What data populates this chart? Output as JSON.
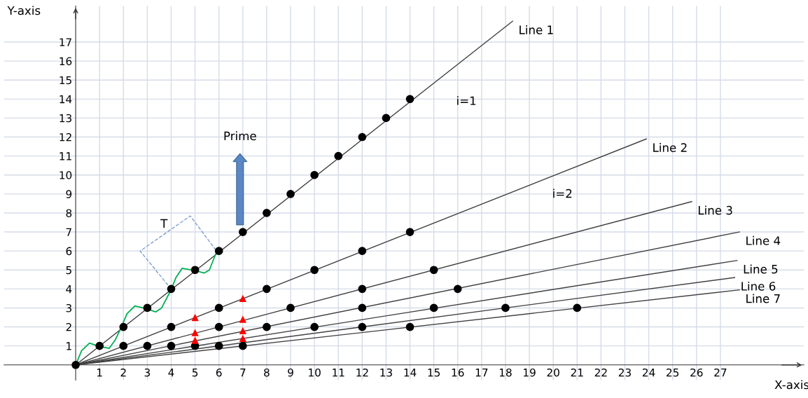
{
  "chart_data": {
    "type": "line",
    "xlabel": "X-axis",
    "ylabel": "Y-axis",
    "xlim": [
      -3,
      30.5
    ],
    "ylim": [
      -0.8,
      18.9
    ],
    "xticks": [
      1,
      2,
      3,
      4,
      5,
      6,
      7,
      8,
      9,
      10,
      11,
      12,
      13,
      14,
      15,
      16,
      17,
      18,
      19,
      20,
      21,
      22,
      23,
      24,
      25,
      26,
      27
    ],
    "yticks": [
      1,
      2,
      3,
      4,
      5,
      6,
      7,
      8,
      9,
      10,
      11,
      12,
      13,
      14,
      15,
      16,
      17
    ],
    "grid": true,
    "legend": false,
    "series": [
      {
        "name": "Line 1",
        "color": "#404040",
        "x": [
          0,
          18.3
        ],
        "values": [
          0,
          18.1
        ]
      },
      {
        "name": "Line 2",
        "color": "#404040",
        "x": [
          0,
          23.9
        ],
        "values": [
          0,
          11.9
        ]
      },
      {
        "name": "Line 3",
        "color": "#404040",
        "x": [
          0,
          25.8
        ],
        "values": [
          0,
          8.6
        ]
      },
      {
        "name": "Line 4",
        "color": "#404040",
        "x": [
          0,
          27.8
        ],
        "values": [
          0,
          7.0
        ]
      },
      {
        "name": "Line 5",
        "color": "#404040",
        "x": [
          0,
          27.7
        ],
        "values": [
          0,
          5.5
        ]
      },
      {
        "name": "Line 6",
        "color": "#404040",
        "x": [
          0,
          27.6
        ],
        "values": [
          0,
          4.6
        ]
      },
      {
        "name": "Line 7",
        "color": "#404040",
        "x": [
          0,
          27.8
        ],
        "values": [
          0,
          3.95
        ]
      },
      {
        "color": "#00b050",
        "x": [
          0,
          0.25,
          0.58,
          0.96,
          1.4,
          1.65,
          1.9,
          2.15,
          2.48,
          2.97,
          3.35,
          3.6,
          3.99,
          4.2,
          4.46,
          4.96,
          5.39,
          5.6,
          5.89
        ],
        "values": [
          0,
          0.75,
          1.15,
          0.98,
          0.87,
          1.3,
          1.95,
          2.7,
          3.1,
          2.96,
          2.79,
          3.0,
          3.94,
          4.6,
          5.09,
          4.98,
          4.84,
          5.0,
          5.92
        ]
      },
      {
        "type": "scatter",
        "color": "#000000",
        "marker": "circle",
        "x": [
          0,
          1,
          2,
          3,
          4,
          5,
          6,
          7,
          8,
          9,
          10,
          11,
          12,
          13,
          14
        ],
        "values": [
          0,
          1,
          2,
          3,
          4,
          5,
          6,
          7,
          8,
          9,
          10,
          11,
          12,
          13,
          14
        ]
      },
      {
        "type": "scatter",
        "color": "#000000",
        "marker": "circle",
        "x": [
          2,
          4,
          6,
          8,
          10,
          12,
          14
        ],
        "values": [
          1,
          2,
          3,
          4,
          5,
          6,
          7
        ]
      },
      {
        "type": "scatter",
        "color": "#000000",
        "marker": "circle",
        "x": [
          3,
          6,
          9,
          12,
          15
        ],
        "values": [
          1,
          2,
          3,
          4,
          5
        ]
      },
      {
        "type": "scatter",
        "color": "#000000",
        "marker": "circle",
        "x": [
          4,
          8,
          12,
          16
        ],
        "values": [
          1,
          2,
          3,
          4
        ]
      },
      {
        "type": "scatter",
        "color": "#000000",
        "marker": "circle",
        "x": [
          5,
          10,
          15
        ],
        "values": [
          1,
          2,
          3
        ]
      },
      {
        "type": "scatter",
        "color": "#000000",
        "marker": "circle",
        "x": [
          6,
          12,
          18
        ],
        "values": [
          1,
          2,
          3
        ]
      },
      {
        "type": "scatter",
        "color": "#000000",
        "marker": "circle",
        "x": [
          7,
          14,
          21
        ],
        "values": [
          1,
          2,
          3
        ]
      },
      {
        "type": "scatter",
        "color": "#ff0000",
        "marker": "triangle",
        "x": [
          5,
          5,
          5,
          7,
          7,
          7,
          7
        ],
        "values": [
          2.5,
          1.7,
          1.3,
          3.5,
          2.4,
          1.8,
          1.4
        ]
      }
    ],
    "annotations": [
      "i=1",
      "i=2",
      "T",
      "Prime"
    ]
  }
}
